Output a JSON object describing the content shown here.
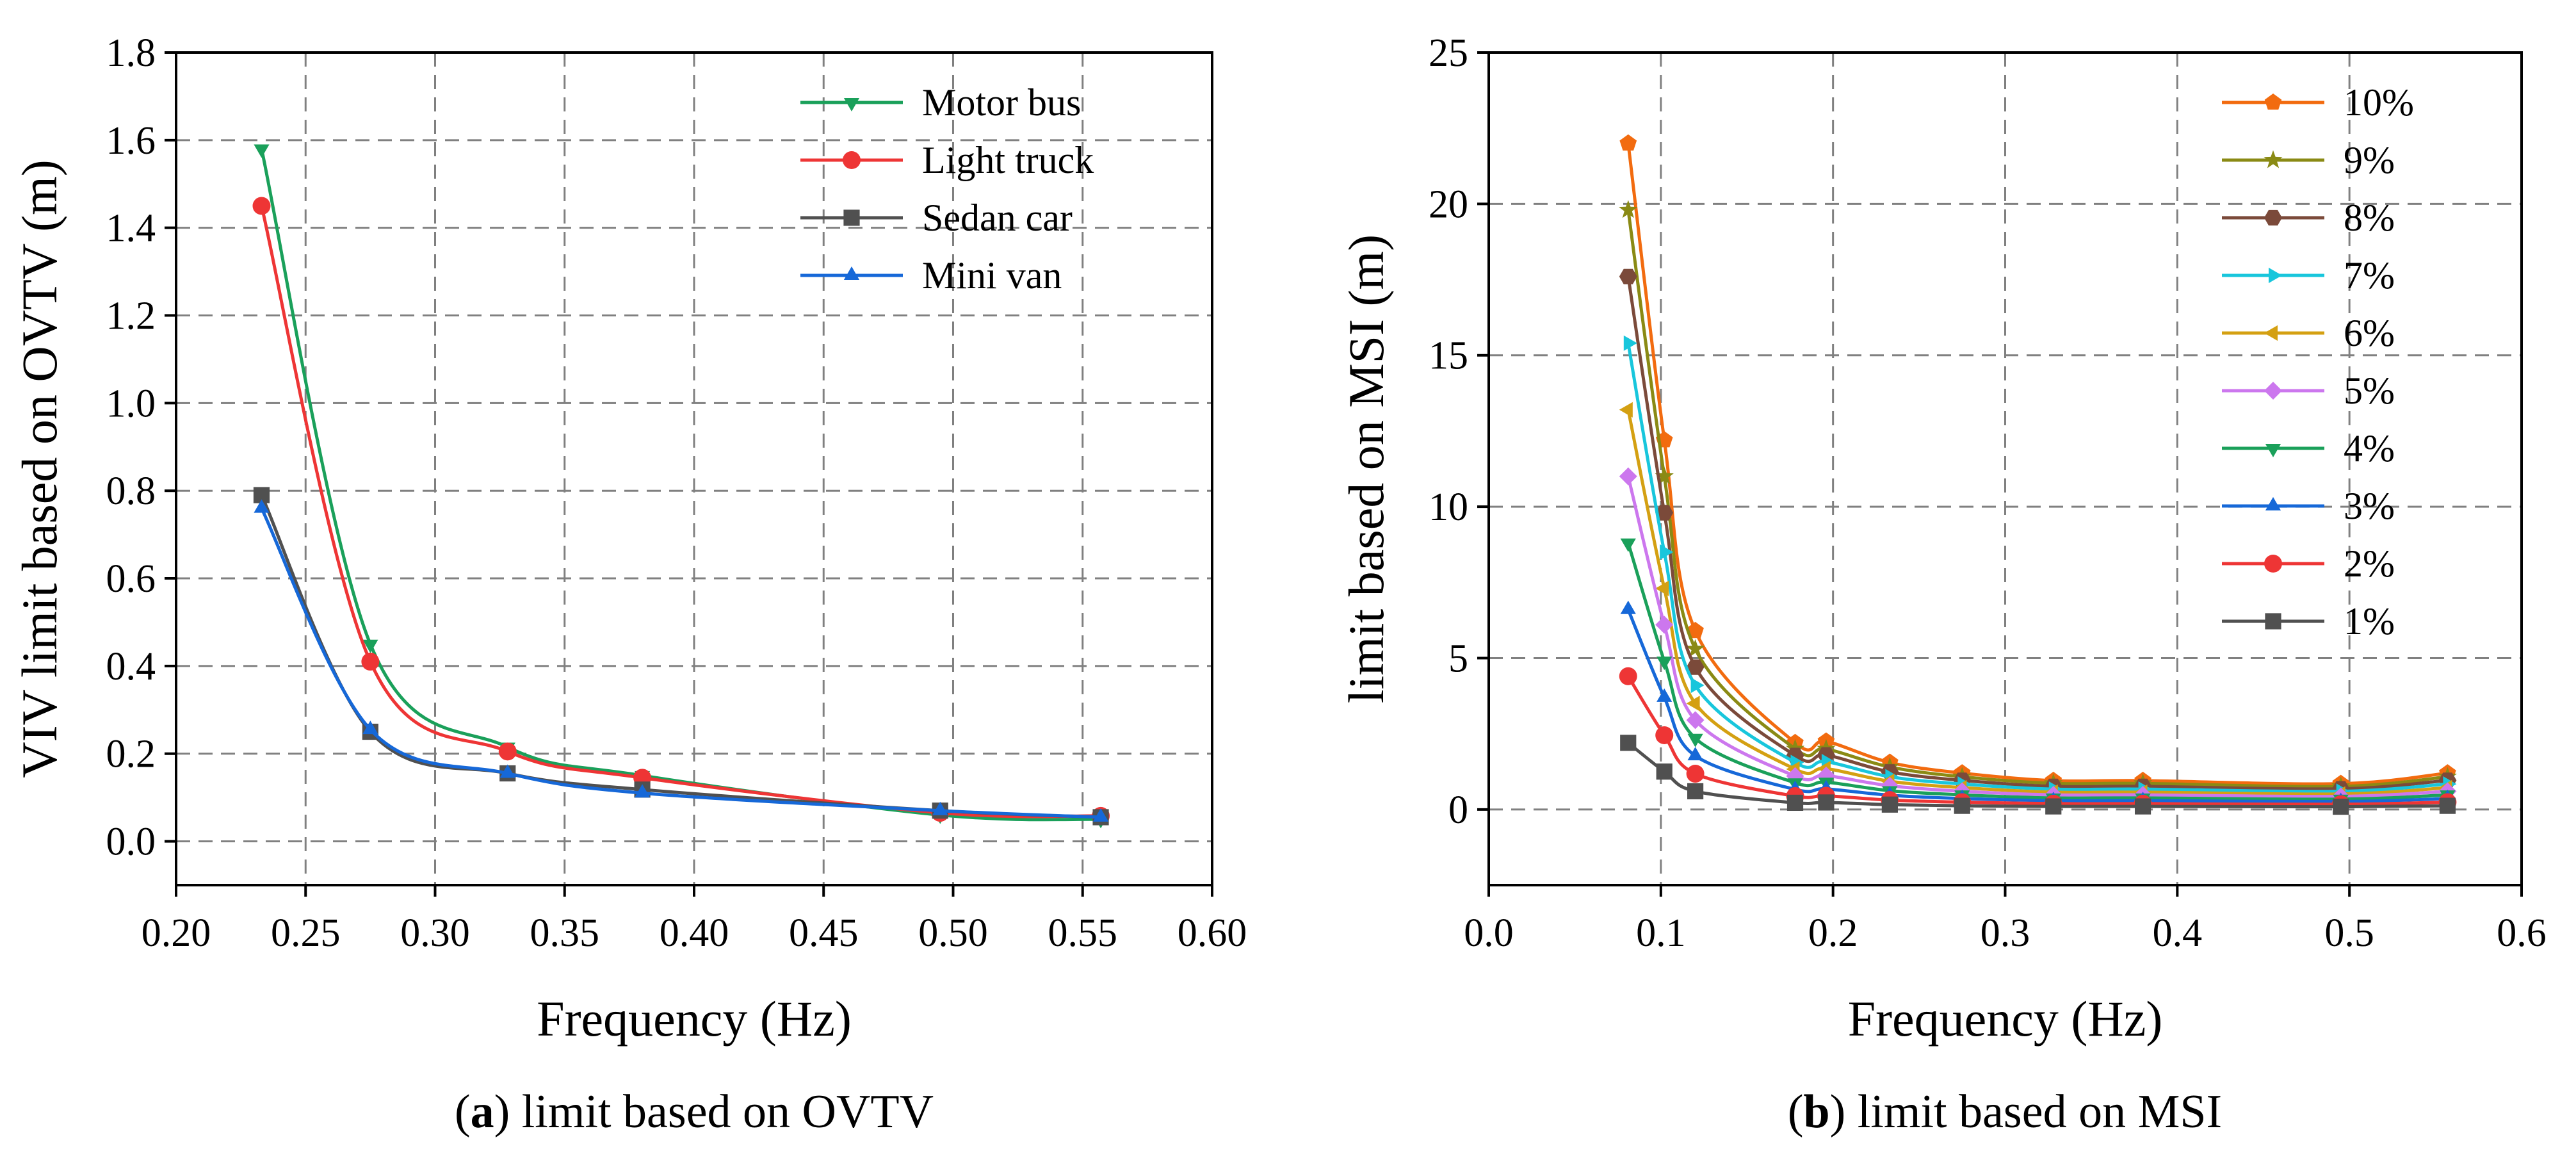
{
  "chart_data": [
    {
      "type": "line",
      "id": "a",
      "caption_label": "a",
      "caption_open": "(",
      "caption_close": ")",
      "caption_text": " limit based on OVTV",
      "xlabel": "Frequency (Hz)",
      "ylabel": "VIV limit based on OVTV (m)",
      "xlim": [
        0.2,
        0.6
      ],
      "ylim": [
        -0.1,
        1.8
      ],
      "xticks": [
        0.2,
        0.25,
        0.3,
        0.35,
        0.4,
        0.45,
        0.5,
        0.55,
        0.6
      ],
      "xtick_labels": [
        "0.20",
        "0.25",
        "0.30",
        "0.35",
        "0.40",
        "0.45",
        "0.50",
        "0.55",
        "0.60"
      ],
      "yticks": [
        0.0,
        0.2,
        0.4,
        0.6,
        0.8,
        1.0,
        1.2,
        1.4,
        1.6,
        1.8
      ],
      "ytick_labels": [
        "0.0",
        "0.2",
        "0.4",
        "0.6",
        "0.8",
        "1.0",
        "1.2",
        "1.4",
        "1.6",
        "1.8"
      ],
      "grid": true,
      "legend_position": "top-right",
      "x": [
        0.233,
        0.275,
        0.328,
        0.38,
        0.495,
        0.557
      ],
      "series": [
        {
          "name": "Motor bus",
          "color": "#1aa05a",
          "marker": "triangle-down",
          "values": [
            1.58,
            0.45,
            0.215,
            0.15,
            0.06,
            0.05
          ]
        },
        {
          "name": "Light truck",
          "color": "#ee3535",
          "marker": "circle",
          "values": [
            1.45,
            0.41,
            0.205,
            0.145,
            0.065,
            0.058
          ]
        },
        {
          "name": "Sedan car",
          "color": "#505050",
          "marker": "square",
          "values": [
            0.79,
            0.25,
            0.155,
            0.118,
            0.07,
            0.055
          ]
        },
        {
          "name": "Mini van",
          "color": "#1668d8",
          "marker": "triangle-up",
          "values": [
            0.76,
            0.255,
            0.155,
            0.11,
            0.07,
            0.055
          ]
        }
      ]
    },
    {
      "type": "line",
      "id": "b",
      "caption_label": "b",
      "caption_open": "(",
      "caption_close": ")",
      "caption_text": " limit based on MSI",
      "xlabel": "Frequency (Hz)",
      "ylabel": "limit based on MSI (m)",
      "xlim": [
        0.0,
        0.6
      ],
      "ylim": [
        -2.5,
        25
      ],
      "xticks": [
        0.0,
        0.1,
        0.2,
        0.3,
        0.4,
        0.5,
        0.6
      ],
      "xtick_labels": [
        "0.0",
        "0.1",
        "0.2",
        "0.3",
        "0.4",
        "0.5",
        "0.6"
      ],
      "yticks": [
        0,
        5,
        10,
        15,
        20,
        25
      ],
      "ytick_labels": [
        "0",
        "5",
        "10",
        "15",
        "20",
        "25"
      ],
      "grid": true,
      "legend_position": "top-right",
      "x": [
        0.081,
        0.102,
        0.12,
        0.178,
        0.196,
        0.233,
        0.275,
        0.328,
        0.38,
        0.495,
        0.557
      ],
      "series": [
        {
          "name": "10%",
          "color": "#f26b0f",
          "marker": "pentagon",
          "values": [
            22.0,
            12.2,
            5.9,
            2.2,
            2.25,
            1.55,
            1.2,
            0.95,
            0.95,
            0.85,
            1.2
          ]
        },
        {
          "name": "9%",
          "color": "#8a8a14",
          "marker": "star",
          "values": [
            19.8,
            11.0,
            5.3,
            2.0,
            2.0,
            1.4,
            1.08,
            0.86,
            0.86,
            0.76,
            1.08
          ]
        },
        {
          "name": "8%",
          "color": "#7b4a3a",
          "marker": "hexagon",
          "values": [
            17.6,
            9.8,
            4.7,
            1.78,
            1.8,
            1.24,
            0.96,
            0.76,
            0.76,
            0.68,
            0.96
          ]
        },
        {
          "name": "7%",
          "color": "#18c6dc",
          "marker": "triangle-right",
          "values": [
            15.4,
            8.5,
            4.1,
            1.55,
            1.58,
            1.08,
            0.84,
            0.67,
            0.67,
            0.6,
            0.84
          ]
        },
        {
          "name": "6%",
          "color": "#d4a012",
          "marker": "triangle-left",
          "values": [
            13.2,
            7.3,
            3.5,
            1.33,
            1.35,
            0.93,
            0.72,
            0.57,
            0.57,
            0.51,
            0.72
          ]
        },
        {
          "name": "5%",
          "color": "#cc77ee",
          "marker": "diamond",
          "values": [
            11.0,
            6.1,
            2.95,
            1.1,
            1.12,
            0.78,
            0.6,
            0.48,
            0.48,
            0.43,
            0.6
          ]
        },
        {
          "name": "4%",
          "color": "#1aa05a",
          "marker": "triangle-down",
          "values": [
            8.8,
            4.9,
            2.35,
            0.88,
            0.9,
            0.62,
            0.48,
            0.38,
            0.38,
            0.34,
            0.48
          ]
        },
        {
          "name": "3%",
          "color": "#1668d8",
          "marker": "triangle-up",
          "values": [
            6.6,
            3.7,
            1.77,
            0.66,
            0.68,
            0.47,
            0.36,
            0.29,
            0.29,
            0.26,
            0.36
          ]
        },
        {
          "name": "2%",
          "color": "#ee3535",
          "marker": "circle",
          "values": [
            4.4,
            2.45,
            1.18,
            0.44,
            0.45,
            0.31,
            0.24,
            0.19,
            0.19,
            0.17,
            0.24
          ]
        },
        {
          "name": "1%",
          "color": "#505050",
          "marker": "square",
          "values": [
            2.2,
            1.25,
            0.6,
            0.22,
            0.23,
            0.16,
            0.12,
            0.1,
            0.1,
            0.09,
            0.12
          ]
        }
      ]
    }
  ]
}
